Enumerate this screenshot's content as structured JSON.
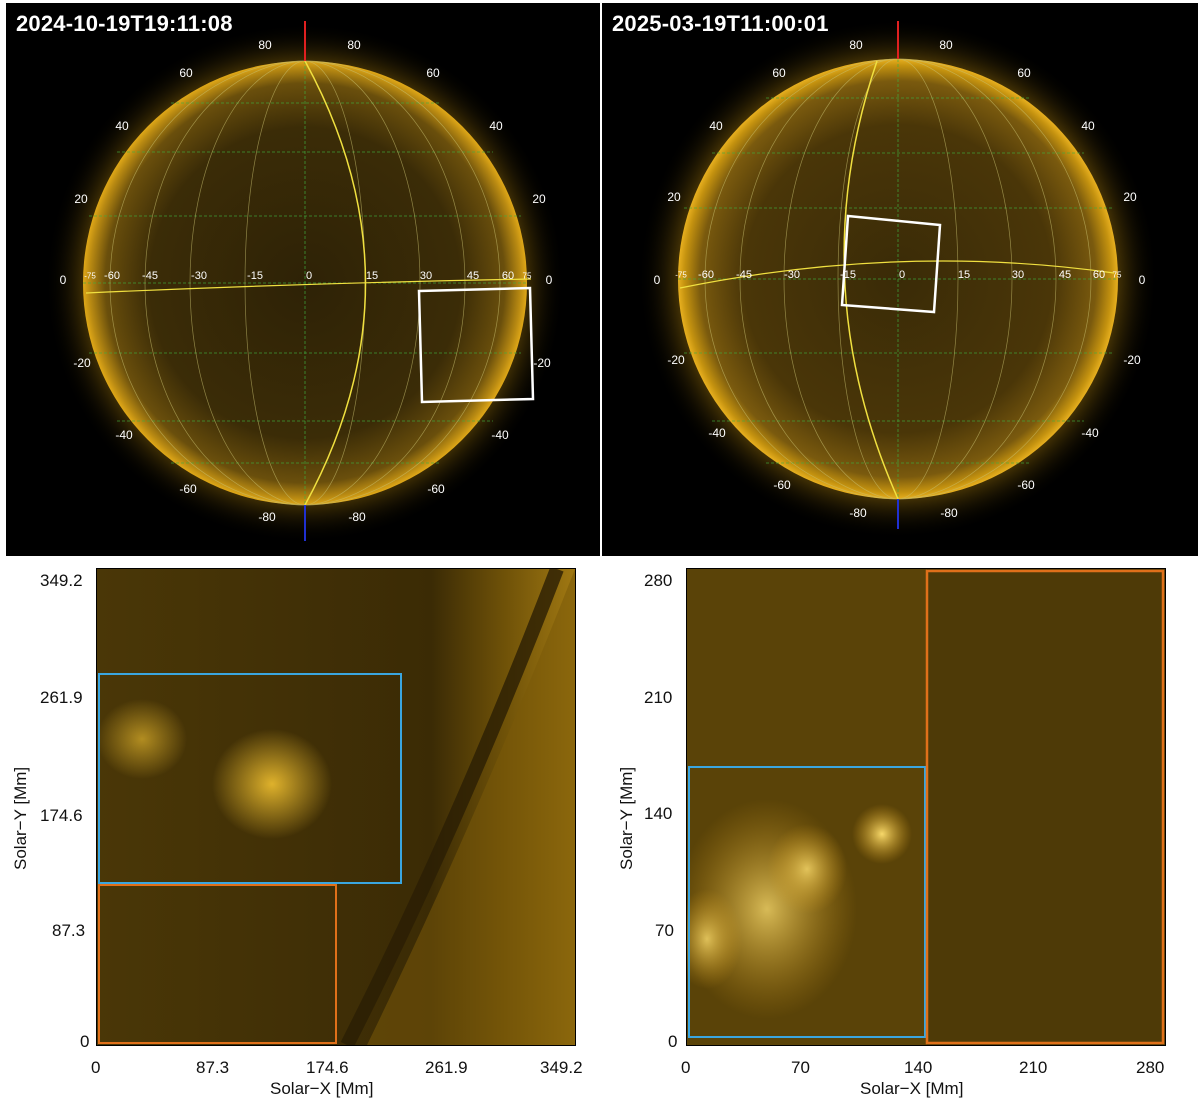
{
  "top_left": {
    "timestamp": "2024-10-19T19:11:08",
    "lat_labels_left": [
      "80",
      "60",
      "40",
      "20",
      "0",
      "-20",
      "-40",
      "-60",
      "-80"
    ],
    "lat_labels_right": [
      "80",
      "60",
      "40",
      "20",
      "0",
      "-20",
      "-40",
      "-60",
      "-80"
    ],
    "lon_labels": [
      "-75",
      "-60",
      "-45",
      "-30",
      "-15",
      "0",
      "15",
      "30",
      "45",
      "60",
      "75"
    ]
  },
  "top_right": {
    "timestamp": "2025-03-19T11:00:01",
    "lat_labels_left": [
      "80",
      "60",
      "40",
      "20",
      "0",
      "-20",
      "-40",
      "-60",
      "-80"
    ],
    "lat_labels_right": [
      "80",
      "60",
      "40",
      "20",
      "0",
      "-20",
      "-40",
      "-60",
      "-80"
    ],
    "lon_labels": [
      "-75",
      "-60",
      "-45",
      "-30",
      "-15",
      "0",
      "15",
      "30",
      "45",
      "60",
      "75"
    ]
  },
  "bottom_left": {
    "x_ticks": [
      "0",
      "87.3",
      "174.6",
      "261.9",
      "349.2"
    ],
    "y_ticks": [
      "0",
      "87.3",
      "174.6",
      "261.9",
      "349.2"
    ],
    "xlabel": "Solar−X [Mm]",
    "ylabel": "Solar−Y [Mm]"
  },
  "bottom_right": {
    "x_ticks": [
      "0",
      "70",
      "140",
      "210",
      "280"
    ],
    "y_ticks": [
      "0",
      "70",
      "140",
      "210",
      "280"
    ],
    "xlabel": "Solar−X [Mm]",
    "ylabel": "Solar−Y [Mm]"
  },
  "colors": {
    "sun_core": "#3a2a06",
    "sun_limb": "#c8960a",
    "grid_green": "#3fae3f",
    "meridian_yellow": "#f0e040",
    "box_white": "#ffffff",
    "box_blue": "#3aa6e0",
    "box_orange": "#e0701a"
  }
}
